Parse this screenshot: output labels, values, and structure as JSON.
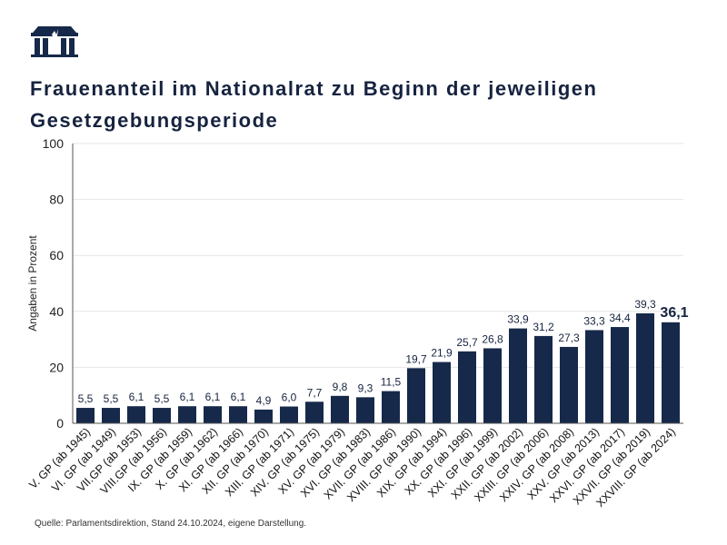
{
  "title": "Frauenanteil im Nationalrat zu Beginn der jeweiligen Gesetzgebungsperiode",
  "source": "Quelle: Parlamentsdirektion, Stand 24.10.2024, eigene Darstellung.",
  "colors": {
    "bar": "#16294a",
    "text": "#16233f"
  },
  "chart_data": {
    "type": "bar",
    "title": "Frauenanteil im Nationalrat zu Beginn der jeweiligen Gesetzgebungsperiode",
    "ylabel": "Angaben in Prozent",
    "xlabel": "",
    "ylim": [
      0,
      100
    ],
    "yticks": [
      0,
      20,
      40,
      60,
      80,
      100
    ],
    "grid": true,
    "categories": [
      "V. GP (ab 1945)",
      "VI. GP (ab 1949)",
      "VII.GP (ab 1953)",
      "VIII.GP (ab 1956)",
      "IX. GP (ab 1959)",
      "X. GP (ab 1962)",
      "XI. GP (ab 1966)",
      "XII. GP (ab 1970)",
      "XIII. GP (ab 1971)",
      "XIV. GP (ab 1975)",
      "XV. GP (ab 1979)",
      "XVI. GP (ab 1983)",
      "XVII. GP (ab 1986)",
      "XVIII. GP (ab 1990)",
      "XIX. GP (ab 1994)",
      "XX. GP (ab 1996)",
      "XXI. GP (ab 1999)",
      "XXII. GP (ab 2002)",
      "XXIII. GP (ab 2006)",
      "XXIV. GP (ab 2008)",
      "XXV. GP (ab 2013)",
      "XXVI. GP (ab 2017)",
      "XXVII. GP (ab 2019)",
      "XXVIII. GP (ab 2024)"
    ],
    "values": [
      5.5,
      5.5,
      6.1,
      5.5,
      6.1,
      6.1,
      6.1,
      4.9,
      6.0,
      7.7,
      9.8,
      9.3,
      11.5,
      19.7,
      21.9,
      25.7,
      26.8,
      33.9,
      31.2,
      27.3,
      33.3,
      34.4,
      39.3,
      36.1
    ],
    "data_labels": [
      "5,5",
      "5,5",
      "6,1",
      "5,5",
      "6,1",
      "6,1",
      "6,1",
      "4,9",
      "6,0",
      "7,7",
      "9,8",
      "9,3",
      "11,5",
      "19,7",
      "21,9",
      "25,7",
      "26,8",
      "33,9",
      "31,2",
      "27,3",
      "33,3",
      "34,4",
      "39,3",
      "36,1"
    ]
  }
}
